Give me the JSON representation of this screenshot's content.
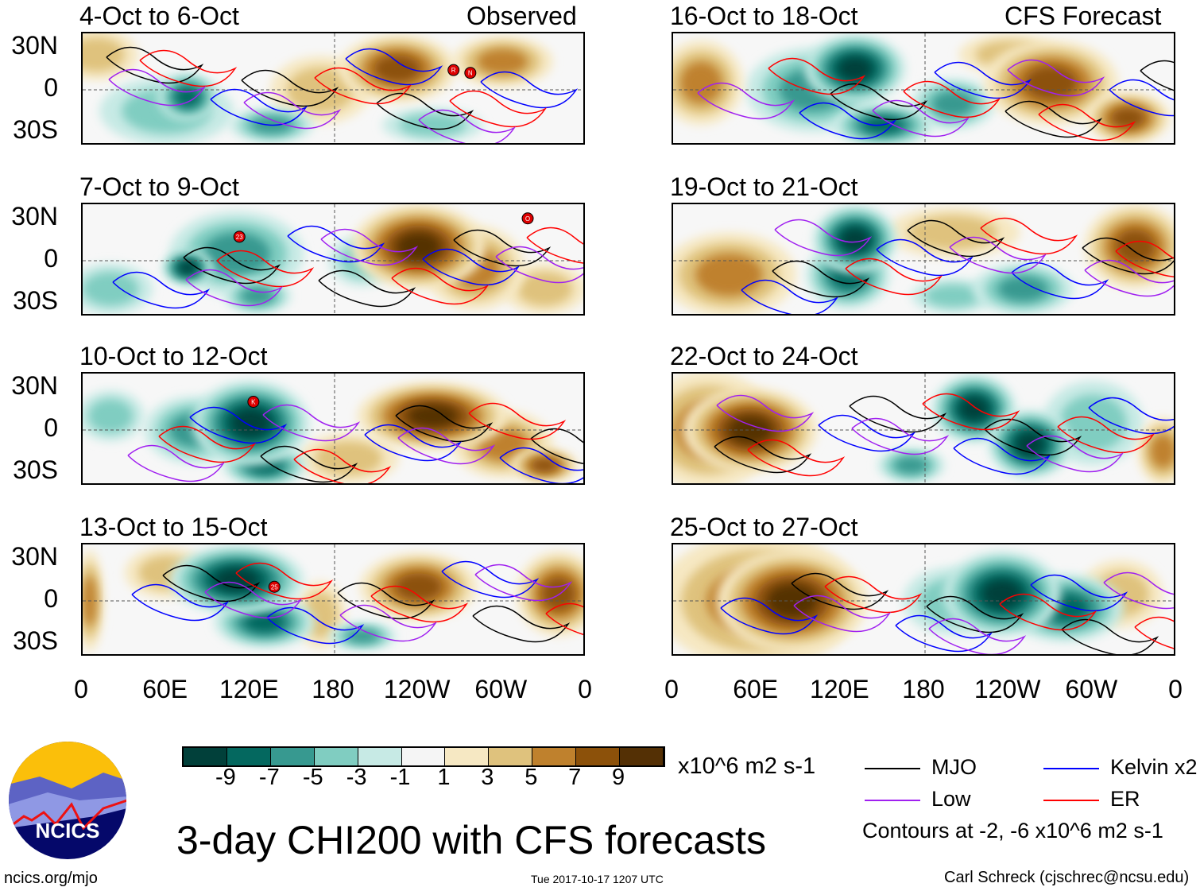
{
  "headers": {
    "left": "Observed",
    "right": "CFS Forecast"
  },
  "y_ticks": [
    "30N",
    "0",
    "30S"
  ],
  "x_ticks": [
    "0",
    "60E",
    "120E",
    "180",
    "120W",
    "60W",
    "0"
  ],
  "colorbar": {
    "labels": [
      "-9",
      "-7",
      "-5",
      "-3",
      "-1",
      "1",
      "3",
      "5",
      "7",
      "9"
    ],
    "colors": [
      "#01403a",
      "#04685f",
      "#379990",
      "#80cdc1",
      "#c7eae5",
      "#f5f5f5",
      "#f6e8c3",
      "#dfc27d",
      "#bf812d",
      "#8c510a",
      "#543005"
    ],
    "units": "x10^6 m2 s-1"
  },
  "legend": {
    "items": [
      {
        "label": "MJO",
        "color": "#000000"
      },
      {
        "label": "Kelvin x2",
        "color": "#0000ff"
      },
      {
        "label": "Low",
        "color": "#a020f0"
      },
      {
        "label": "ER",
        "color": "#ff0000"
      }
    ],
    "note": "Contours at -2, -6 x10^6 m2 s-1"
  },
  "title": "3-day CHI200 with CFS forecasts",
  "logo_text": "NCICS",
  "url": "ncics.org/mjo",
  "timestamp": "Tue 2017-10-17 1207 UTC",
  "credit": "Carl Schreck (cjschrec@ncsu.edu)",
  "chart_data": {
    "type": "heatmap",
    "title": "3-day CHI200 with CFS forecasts",
    "xlim": [
      0,
      360
    ],
    "ylim": [
      -40,
      40
    ],
    "panels": [
      {
        "label": "4-Oct to 6-Oct",
        "column": "Observed",
        "storms": [
          {
            "name": "R",
            "lon": 265,
            "lat": 14
          },
          {
            "name": "N",
            "lon": 277,
            "lat": 12
          }
        ],
        "blobs": [
          [
            75,
            -5,
            -7,
            18,
            14
          ],
          [
            135,
            -25,
            -5,
            25,
            10
          ],
          [
            60,
            -15,
            -3,
            40,
            20
          ],
          [
            225,
            15,
            7,
            35,
            20
          ],
          [
            300,
            20,
            5,
            30,
            15
          ],
          [
            250,
            -25,
            -3,
            30,
            10
          ],
          [
            10,
            25,
            3,
            25,
            15
          ],
          [
            170,
            0,
            3,
            30,
            20
          ]
        ]
      },
      {
        "label": "7-Oct to 9-Oct",
        "column": "Observed",
        "storms": [
          {
            "name": "23",
            "lon": 112,
            "lat": 17
          },
          {
            "name": "O",
            "lon": 318,
            "lat": 30
          }
        ],
        "blobs": [
          [
            75,
            -5,
            -9,
            15,
            10
          ],
          [
            110,
            5,
            -5,
            40,
            25
          ],
          [
            125,
            -25,
            -5,
            20,
            10
          ],
          [
            240,
            10,
            9,
            40,
            25
          ],
          [
            280,
            -5,
            5,
            30,
            25
          ],
          [
            200,
            0,
            -3,
            20,
            15
          ],
          [
            20,
            -20,
            -3,
            25,
            15
          ],
          [
            330,
            -20,
            3,
            25,
            15
          ]
        ]
      },
      {
        "label": "10-Oct to 12-Oct",
        "column": "Observed",
        "storms": [
          {
            "name": "K",
            "lon": 122,
            "lat": 20
          }
        ],
        "blobs": [
          [
            120,
            5,
            -9,
            35,
            25
          ],
          [
            130,
            -25,
            -7,
            25,
            12
          ],
          [
            80,
            0,
            -5,
            30,
            20
          ],
          [
            250,
            10,
            9,
            45,
            20
          ],
          [
            330,
            -25,
            7,
            20,
            10
          ],
          [
            300,
            -10,
            5,
            30,
            20
          ],
          [
            190,
            -20,
            3,
            30,
            15
          ],
          [
            20,
            10,
            -3,
            20,
            15
          ]
        ]
      },
      {
        "label": "13-Oct to 15-Oct",
        "column": "Observed",
        "storms": [
          {
            "name": "25",
            "lon": 137,
            "lat": 10
          }
        ],
        "blobs": [
          [
            110,
            15,
            -9,
            40,
            20
          ],
          [
            130,
            -15,
            -7,
            30,
            15
          ],
          [
            200,
            -25,
            -5,
            20,
            8
          ],
          [
            240,
            10,
            7,
            35,
            20
          ],
          [
            340,
            5,
            7,
            25,
            25
          ],
          [
            5,
            0,
            5,
            8,
            30
          ],
          [
            60,
            20,
            3,
            25,
            15
          ],
          [
            170,
            -10,
            3,
            15,
            20
          ]
        ]
      },
      {
        "label": "16-Oct to 18-Oct",
        "column": "CFS Forecast",
        "storms": [],
        "blobs": [
          [
            130,
            15,
            -9,
            30,
            20
          ],
          [
            150,
            -25,
            -7,
            30,
            12
          ],
          [
            100,
            0,
            -5,
            40,
            25
          ],
          [
            200,
            -10,
            -5,
            25,
            15
          ],
          [
            270,
            5,
            7,
            40,
            25
          ],
          [
            325,
            -20,
            7,
            25,
            15
          ],
          [
            20,
            5,
            5,
            25,
            25
          ],
          [
            240,
            25,
            3,
            30,
            12
          ]
        ]
      },
      {
        "label": "19-Oct to 21-Oct",
        "column": "CFS Forecast",
        "storms": [],
        "blobs": [
          [
            130,
            15,
            -9,
            25,
            20
          ],
          [
            125,
            -10,
            -7,
            25,
            20
          ],
          [
            250,
            -20,
            -5,
            30,
            15
          ],
          [
            40,
            -10,
            5,
            40,
            25
          ],
          [
            330,
            10,
            7,
            30,
            25
          ],
          [
            200,
            20,
            3,
            40,
            15
          ],
          [
            200,
            -25,
            -3,
            25,
            10
          ]
        ]
      },
      {
        "label": "22-Oct to 24-Oct",
        "column": "CFS Forecast",
        "storms": [],
        "blobs": [
          [
            55,
            0,
            9,
            40,
            25
          ],
          [
            25,
            0,
            5,
            40,
            35
          ],
          [
            215,
            15,
            -9,
            25,
            20
          ],
          [
            255,
            -10,
            -9,
            25,
            20
          ],
          [
            170,
            -25,
            -5,
            20,
            10
          ],
          [
            300,
            5,
            -3,
            30,
            25
          ],
          [
            350,
            -15,
            5,
            15,
            20
          ]
        ]
      },
      {
        "label": "25-Oct to 27-Oct",
        "column": "CFS Forecast",
        "storms": [],
        "blobs": [
          [
            85,
            0,
            9,
            45,
            30
          ],
          [
            60,
            0,
            5,
            60,
            40
          ],
          [
            235,
            5,
            -9,
            35,
            25
          ],
          [
            280,
            -5,
            -7,
            35,
            20
          ],
          [
            200,
            0,
            -3,
            30,
            20
          ],
          [
            320,
            5,
            3,
            25,
            20
          ]
        ]
      }
    ]
  }
}
